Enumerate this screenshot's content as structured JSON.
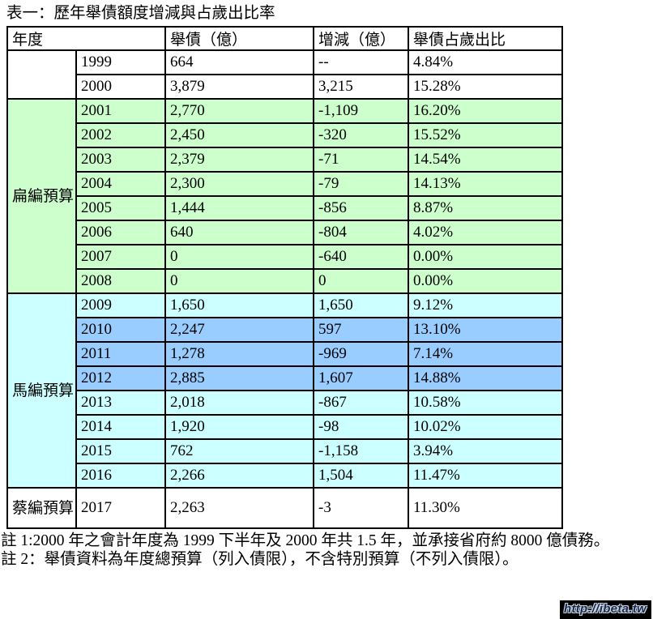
{
  "title": "表一：歷年舉債額度增減與占歲出比率",
  "table": {
    "headers": [
      "年度",
      "舉債（億）",
      "增減（億）",
      "舉債占歲出比"
    ],
    "groups": [
      {
        "label": "",
        "tone": "white",
        "rows": [
          {
            "year": "1999",
            "debt": "664",
            "change": "--",
            "ratio": "4.84%",
            "tone": "white"
          },
          {
            "year": "2000",
            "debt": "3,879",
            "change": "3,215",
            "ratio": "15.28%",
            "tone": "white"
          }
        ]
      },
      {
        "label": "扁編預算",
        "tone": "green",
        "rows": [
          {
            "year": "2001",
            "debt": "2,770",
            "change": "-1,109",
            "ratio": "16.20%",
            "tone": "green"
          },
          {
            "year": "2002",
            "debt": "2,450",
            "change": "-320",
            "ratio": "15.52%",
            "tone": "green"
          },
          {
            "year": "2003",
            "debt": "2,379",
            "change": "-71",
            "ratio": "14.54%",
            "tone": "green"
          },
          {
            "year": "2004",
            "debt": "2,300",
            "change": "-79",
            "ratio": "14.13%",
            "tone": "green"
          },
          {
            "year": "2005",
            "debt": "1,444",
            "change": "-856",
            "ratio": "8.87%",
            "tone": "green"
          },
          {
            "year": "2006",
            "debt": "640",
            "change": "-804",
            "ratio": "4.02%",
            "tone": "green"
          },
          {
            "year": "2007",
            "debt": "0",
            "change": "-640",
            "ratio": "0.00%",
            "tone": "green"
          },
          {
            "year": "2008",
            "debt": "0",
            "change": "0",
            "ratio": "0.00%",
            "tone": "green"
          }
        ]
      },
      {
        "label": "馬編預算",
        "tone": "cyan",
        "rows": [
          {
            "year": "2009",
            "debt": "1,650",
            "change": "1,650",
            "ratio": "9.12%",
            "tone": "cyan"
          },
          {
            "year": "2010",
            "debt": "2,247",
            "change": "597",
            "ratio": "13.10%",
            "tone": "blue"
          },
          {
            "year": "2011",
            "debt": "1,278",
            "change": "-969",
            "ratio": "7.14%",
            "tone": "blue"
          },
          {
            "year": "2012",
            "debt": "2,885",
            "change": "1,607",
            "ratio": "14.88%",
            "tone": "blue"
          },
          {
            "year": "2013",
            "debt": "2,018",
            "change": "-867",
            "ratio": "10.58%",
            "tone": "cyan"
          },
          {
            "year": "2014",
            "debt": "1,920",
            "change": "-98",
            "ratio": "10.02%",
            "tone": "cyan"
          },
          {
            "year": "2015",
            "debt": "762",
            "change": "-1,158",
            "ratio": "3.94%",
            "tone": "cyan"
          },
          {
            "year": "2016",
            "debt": "2,266",
            "change": "1,504",
            "ratio": "11.47%",
            "tone": "cyan"
          }
        ]
      },
      {
        "label": "蔡編預算",
        "tone": "white",
        "tall": true,
        "rows": [
          {
            "year": "2017",
            "debt": "2,263",
            "change": "-3",
            "ratio": "11.30%",
            "tone": "white"
          }
        ]
      }
    ]
  },
  "notes": [
    "註 1:2000 年之會計年度為 1999 下半年及 2000 年共 1.5 年，並承接省府約 8000 億債務。",
    "註 2：舉債資料為年度總預算（列入債限），不含特別預算（不列入債限）。"
  ],
  "watermark": "http://ibeta.tw",
  "colors": {
    "green": "#ccffcc",
    "cyan": "#ccffff",
    "blue": "#99ccff",
    "border": "#000000",
    "watermark_bg": "#000000"
  }
}
